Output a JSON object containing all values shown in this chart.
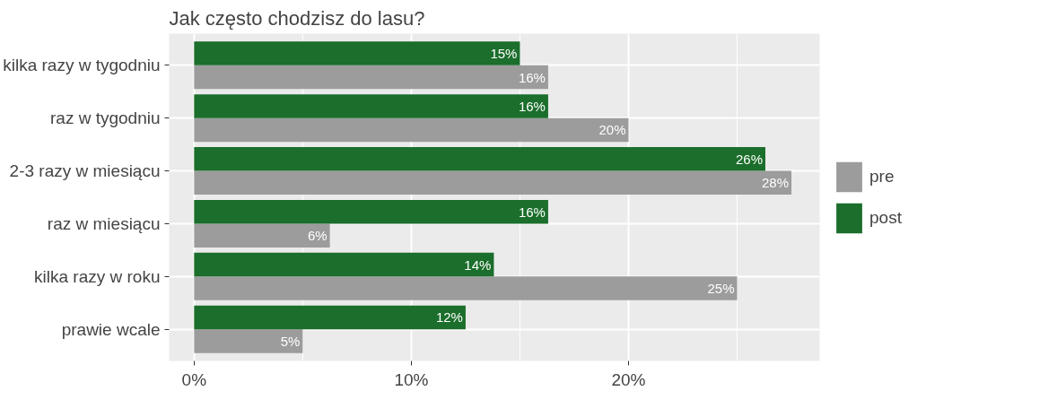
{
  "chart_data": {
    "type": "bar",
    "orientation": "horizontal",
    "title": "Jak często chodzisz do lasu?",
    "categories": [
      "kilka razy w tygodniu",
      "raz w tygodniu",
      "2-3 razy w miesiącu",
      "raz w miesiącu",
      "kilka razy w roku",
      "prawie wcale"
    ],
    "series": [
      {
        "name": "pre",
        "color": "#9c9c9c",
        "values": [
          16.3,
          20.0,
          27.5,
          6.25,
          25.0,
          5.0
        ],
        "value_labels": [
          "16%",
          "20%",
          "28%",
          "6%",
          "25%",
          "5%"
        ]
      },
      {
        "name": "post",
        "color": "#1b6e2b",
        "values": [
          15.0,
          16.3,
          26.3,
          16.3,
          13.8,
          12.5
        ],
        "value_labels": [
          "15%",
          "16%",
          "26%",
          "16%",
          "14%",
          "12%"
        ]
      }
    ],
    "xlim": [
      -1.15,
      28.8
    ],
    "xticks": [
      {
        "value": 0,
        "label": "0%"
      },
      {
        "value": 10,
        "label": "10%"
      },
      {
        "value": 20,
        "label": "20%"
      }
    ],
    "grid": true,
    "legend": "right"
  }
}
